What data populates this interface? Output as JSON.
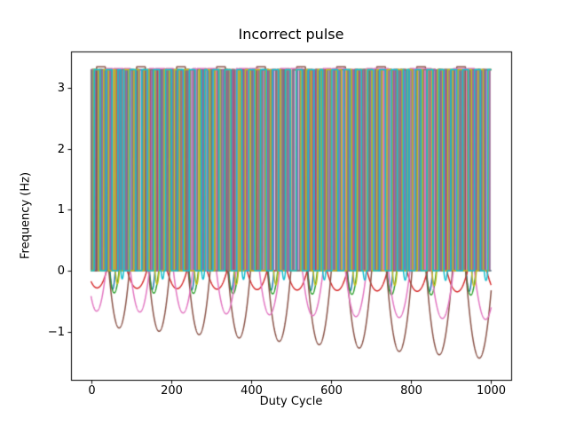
{
  "chart_data": {
    "type": "line",
    "title": "Incorrect pulse",
    "xlabel": "Duty Cycle",
    "ylabel": "Frequency (Hz)",
    "x_range": [
      0,
      1000
    ],
    "xlim": [
      -50,
      1050
    ],
    "ylim": [
      -1.79,
      3.6
    ],
    "xticks": [
      {
        "value": 0,
        "label": "0"
      },
      {
        "value": 200,
        "label": "200"
      },
      {
        "value": 400,
        "label": "400"
      },
      {
        "value": 600,
        "label": "600"
      },
      {
        "value": 800,
        "label": "800"
      },
      {
        "value": 1000,
        "label": "1000"
      }
    ],
    "yticks": [
      {
        "value": -1,
        "label": "−1"
      },
      {
        "value": 0,
        "label": "0"
      },
      {
        "value": 1,
        "label": "1"
      },
      {
        "value": 2,
        "label": "2"
      },
      {
        "value": 3,
        "label": "3"
      }
    ],
    "grid": false,
    "legend": false,
    "background": "#ffffff",
    "axis_color": "#000000",
    "line_width": 1.5,
    "description": "Ten overlapping pulse trains toggling between 0 and ~3.3 Hz across duty cycle 0-1000, with erroneous periodic negative dips below zero that deepen toward the right (brown reaching about -1.45, pink about -0.8).",
    "series": [
      {
        "name": "pulse-blue",
        "color": "#1f77b4",
        "amplitude": 3.3,
        "square": {
          "period": 19.3,
          "phase": 2,
          "duty": 0.5
        },
        "dip": {
          "period": 99,
          "center": 54,
          "width": [
            6.5,
            7.5
          ],
          "depth": [
            0.3,
            0.34
          ]
        }
      },
      {
        "name": "pulse-orange",
        "color": "#ff7f0e",
        "amplitude": 3.3,
        "square": {
          "period": 18.1,
          "phase": 0.4,
          "duty": 0.5
        },
        "dip": null
      },
      {
        "name": "pulse-green",
        "color": "#2ca02c",
        "amplitude": 3.3,
        "square": {
          "period": 15.7,
          "phase": 4,
          "duty": 0.5
        },
        "dip": {
          "period": 99,
          "center": 58,
          "width": [
            12,
            13
          ],
          "depth": [
            0.36,
            0.4
          ]
        }
      },
      {
        "name": "pulse-red",
        "color": "#d62728",
        "amplitude": 3.3,
        "square": {
          "period": 12.3,
          "phase": 7,
          "duty": 0.5
        },
        "dip": {
          "period": 100,
          "center": 15,
          "width": [
            24,
            26
          ],
          "depth": [
            0.28,
            0.35
          ]
        }
      },
      {
        "name": "pulse-purple",
        "color": "#9467bd",
        "amplitude": 3.3,
        "square": {
          "period": 9.3,
          "phase": 1,
          "duty": 0.5
        },
        "dip": null
      },
      {
        "name": "pulse-brown",
        "color": "#8c564b",
        "amplitude": 3.35,
        "square": {
          "period": 100,
          "phase": 14,
          "duty": 0.22
        },
        "dip": {
          "period": 100,
          "center": 70,
          "width": [
            25,
            34
          ],
          "depth": [
            0.9,
            1.45
          ]
        }
      },
      {
        "name": "pulse-pink",
        "color": "#e377c2",
        "amplitude": 3.32,
        "square": {
          "period": 26,
          "phase": 5,
          "duty": 0.9
        },
        "dip": {
          "period": 108,
          "center": 14,
          "width": [
            23,
            28
          ],
          "depth": [
            0.66,
            0.8
          ]
        }
      },
      {
        "name": "pulse-gray",
        "color": "#7f7f7f",
        "amplitude": 3.3,
        "square": {
          "period": 17.1,
          "phase": 9,
          "duty": 0.5
        },
        "dip": null
      },
      {
        "name": "pulse-olive",
        "color": "#bcbd22",
        "amplitude": 3.3,
        "square": {
          "period": 25.3,
          "phase": 6,
          "duty": 0.5
        },
        "dip": {
          "period": 99,
          "center": 66,
          "width": [
            5,
            6
          ],
          "depth": [
            0.21,
            0.25
          ]
        }
      },
      {
        "name": "pulse-cyan",
        "color": "#17becf",
        "amplitude": 3.3,
        "square": {
          "period": 29.7,
          "phase": 8,
          "duty": 0.5
        },
        "dip": {
          "period": 101,
          "center": 78,
          "width": [
            3.5,
            4.5
          ],
          "depth": [
            0.13,
            0.16
          ]
        }
      }
    ]
  }
}
